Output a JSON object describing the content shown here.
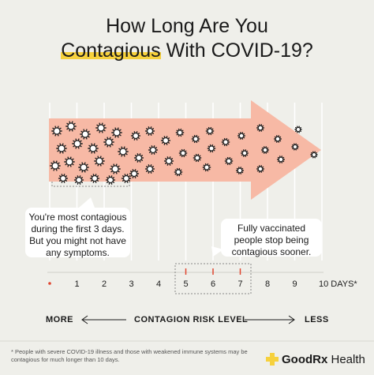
{
  "title": {
    "line1": "How Long Are You",
    "line2_highlight": "Contagious",
    "line2_rest": " With COVID-19?"
  },
  "callouts": {
    "left": [
      "You're most contagious",
      "during the first 3 days.",
      "But you might not have",
      "any symptoms."
    ],
    "right": [
      "Fully vaccinated",
      "people stop being",
      "contagious sooner."
    ]
  },
  "axis": {
    "labels": [
      "1",
      "2",
      "3",
      "4",
      "5",
      "6",
      "7",
      "8",
      "9",
      "10 DAYS*"
    ],
    "highlighted_days": [
      "5",
      "6",
      "7"
    ]
  },
  "risk": {
    "more": "MORE",
    "center": "CONTAGION RISK LEVEL",
    "less": "LESS"
  },
  "footnote": "* People with severe COVID-19 illness and those with weakened immune systems may be contagious for much longer than 10 days.",
  "brand": {
    "name_bold": "GoodRx",
    "name_rest": " Health"
  },
  "colors": {
    "background": "#efefea",
    "arrow": "#f7b9a5",
    "highlight": "#f6d13d",
    "marker_red": "#e0452f",
    "brand_yellow": "#f6d13d"
  }
}
